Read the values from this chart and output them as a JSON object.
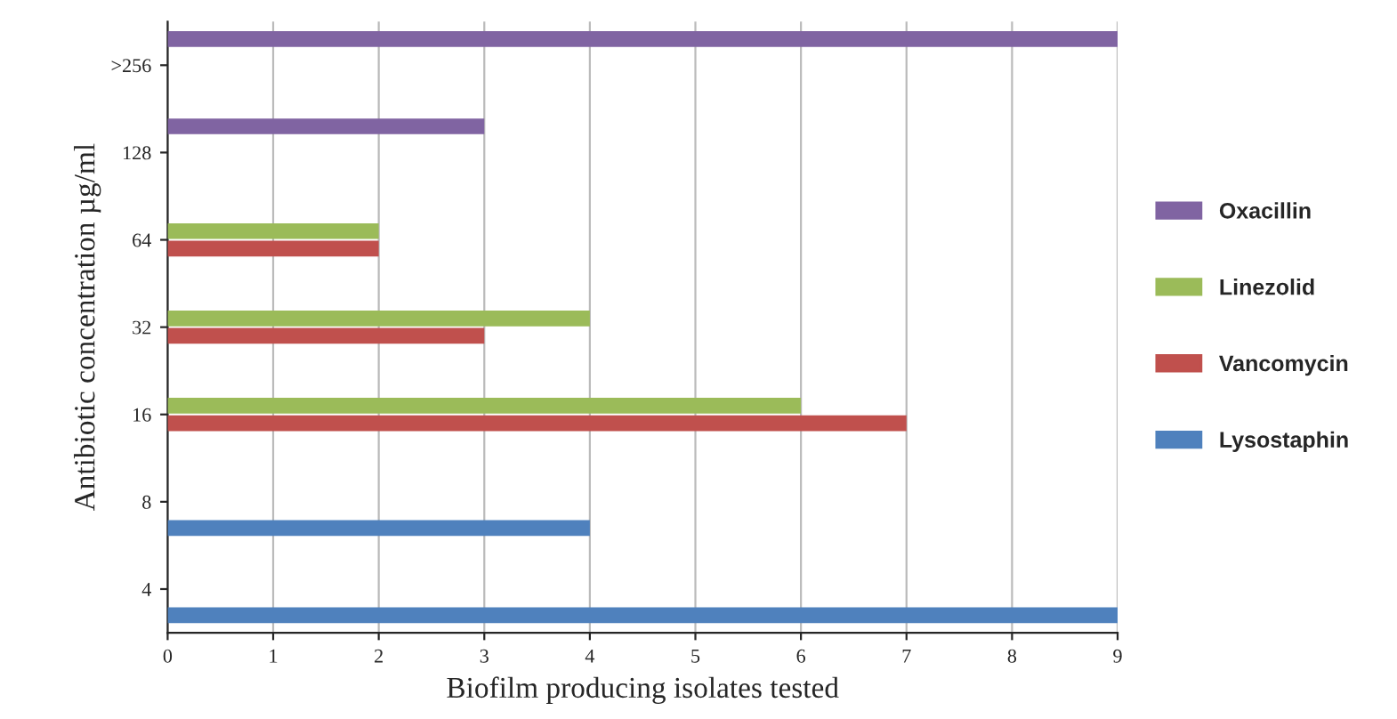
{
  "chart_data": {
    "type": "bar",
    "orientation": "horizontal",
    "xlabel": "Biofilm producing isolates tested",
    "ylabel": "Antibiotic concentration µg/ml",
    "categories": [
      ">256",
      "128",
      "64",
      "32",
      "16",
      "8",
      "4"
    ],
    "series": [
      {
        "name": "Lysostaphin",
        "color": "#4f81bd",
        "values": [
          null,
          null,
          null,
          null,
          null,
          4,
          9
        ]
      },
      {
        "name": "Vancomycin",
        "color": "#c0504d",
        "values": [
          null,
          null,
          2,
          3,
          7,
          null,
          null
        ]
      },
      {
        "name": "Linezolid",
        "color": "#9bbb59",
        "values": [
          null,
          null,
          2,
          4,
          6,
          null,
          null
        ]
      },
      {
        "name": "Oxacillin",
        "color": "#8064a2",
        "values": [
          9,
          3,
          null,
          null,
          null,
          null,
          null
        ]
      }
    ],
    "xlim": [
      0,
      9
    ],
    "xticks": [
      0,
      1,
      2,
      3,
      4,
      5,
      6,
      7,
      8,
      9
    ],
    "grid": "x",
    "legend": "right"
  }
}
